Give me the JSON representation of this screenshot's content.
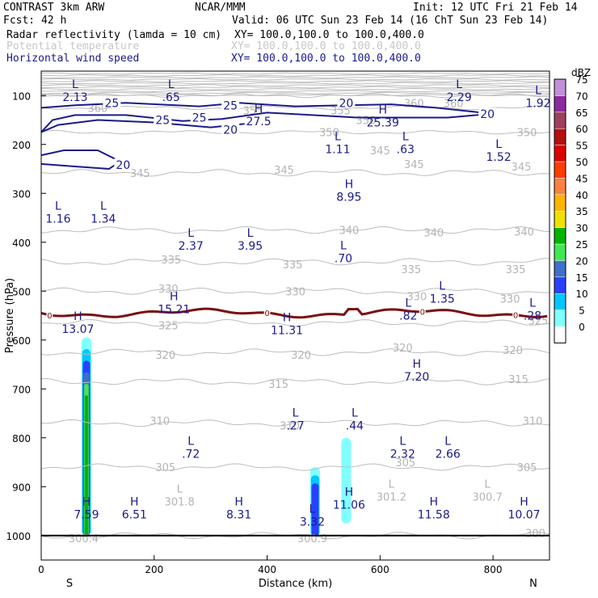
{
  "header": {
    "model": "CONTRAST  3km ARW",
    "center": "NCAR/MMM",
    "init": "Init: 12 UTC Fri 21 Feb 14",
    "fcst": "Fcst:   42 h",
    "valid": "Valid: 06 UTC Sun 23 Feb 14 (16 ChT Sun 23 Feb 14)",
    "fields": [
      {
        "label": "Radar reflectivity (lamda = 10 cm)",
        "xy": "XY= 100.0,100.0 to 100.0,400.0"
      },
      {
        "label": "Potential temperature",
        "xy": "XY= 100.0,100.0 to 100.0,400.0"
      },
      {
        "label": "Horizontal wind speed",
        "xy": "XY= 100.0,100.0 to 100.0,400.0"
      }
    ],
    "colors": {
      "field0": "#000000",
      "field1": "#c8c8c8",
      "field2": "#1a1a8c"
    }
  },
  "chart_data": {
    "type": "cross-section",
    "xlabel": "Distance (km)",
    "ylabel": "Pressure (hPa)",
    "xlim": [
      0,
      900
    ],
    "ylim": [
      1050,
      50
    ],
    "x_ticks": [
      0,
      200,
      400,
      600,
      800
    ],
    "y_ticks": [
      100,
      200,
      300,
      400,
      500,
      600,
      700,
      800,
      900,
      1000
    ],
    "end_labels": {
      "left": "S",
      "right": "N"
    },
    "colorbar": {
      "units": "dBZ",
      "levels": [
        0,
        5,
        10,
        15,
        20,
        25,
        30,
        35,
        40,
        45,
        50,
        55,
        60,
        65,
        70,
        75
      ],
      "colors": [
        "#ffffff",
        "#80ffff",
        "#00c8ff",
        "#2a40ff",
        "#3d70c8",
        "#40e850",
        "#00b400",
        "#f0e000",
        "#ffb400",
        "#ff8040",
        "#ff3c00",
        "#dc0000",
        "#b41010",
        "#a04060",
        "#8c2aa0",
        "#c090d8"
      ]
    },
    "theta_contours": [
      {
        "value": 300,
        "p": 1000
      },
      {
        "value": 305,
        "p": 860
      },
      {
        "value": 310,
        "p": 770
      },
      {
        "value": 315,
        "p": 685
      },
      {
        "value": 320,
        "p": 625
      },
      {
        "value": 325,
        "p": 565
      },
      {
        "value": 330,
        "p": 500
      },
      {
        "value": 335,
        "p": 440
      },
      {
        "value": 340,
        "p": 375
      },
      {
        "value": 345,
        "p": 258
      },
      {
        "value": 350,
        "p": 175
      },
      {
        "value": 355,
        "p": 125
      },
      {
        "value": 360,
        "p": 100
      }
    ],
    "theta_labels": [
      {
        "x": 100,
        "p": 125,
        "text": "360"
      },
      {
        "x": 375,
        "p": 130,
        "text": "355"
      },
      {
        "x": 660,
        "p": 115,
        "text": "360"
      },
      {
        "x": 730,
        "p": 115,
        "text": "360"
      },
      {
        "x": 530,
        "p": 130,
        "text": "355"
      },
      {
        "x": 575,
        "p": 150,
        "text": "350"
      },
      {
        "x": 860,
        "p": 175,
        "text": "350"
      },
      {
        "x": 510,
        "p": 175,
        "text": "350"
      },
      {
        "x": 175,
        "p": 258,
        "text": "345"
      },
      {
        "x": 430,
        "p": 252,
        "text": "345"
      },
      {
        "x": 660,
        "p": 240,
        "text": "345"
      },
      {
        "x": 600,
        "p": 212,
        "text": "345"
      },
      {
        "x": 850,
        "p": 245,
        "text": "345"
      },
      {
        "x": 695,
        "p": 380,
        "text": "340"
      },
      {
        "x": 545,
        "p": 375,
        "text": "340"
      },
      {
        "x": 855,
        "p": 378,
        "text": "340"
      },
      {
        "x": 230,
        "p": 435,
        "text": "335"
      },
      {
        "x": 445,
        "p": 445,
        "text": "335"
      },
      {
        "x": 655,
        "p": 455,
        "text": "335"
      },
      {
        "x": 840,
        "p": 455,
        "text": "335"
      },
      {
        "x": 225,
        "p": 495,
        "text": "330"
      },
      {
        "x": 450,
        "p": 500,
        "text": "330"
      },
      {
        "x": 665,
        "p": 510,
        "text": "330"
      },
      {
        "x": 830,
        "p": 515,
        "text": "330"
      },
      {
        "x": 225,
        "p": 570,
        "text": "325"
      },
      {
        "x": 880,
        "p": 560,
        "text": "325"
      },
      {
        "x": 220,
        "p": 630,
        "text": "320"
      },
      {
        "x": 460,
        "p": 630,
        "text": "320"
      },
      {
        "x": 835,
        "p": 620,
        "text": "320"
      },
      {
        "x": 640,
        "p": 615,
        "text": "320"
      },
      {
        "x": 420,
        "p": 690,
        "text": "315"
      },
      {
        "x": 845,
        "p": 680,
        "text": "315"
      },
      {
        "x": 210,
        "p": 765,
        "text": "310"
      },
      {
        "x": 440,
        "p": 775,
        "text": "310"
      },
      {
        "x": 870,
        "p": 765,
        "text": "310"
      },
      {
        "x": 220,
        "p": 860,
        "text": "305"
      },
      {
        "x": 645,
        "p": 850,
        "text": "305"
      },
      {
        "x": 860,
        "p": 860,
        "text": "305"
      },
      {
        "x": 75,
        "p": 1005,
        "text": "300.4"
      },
      {
        "x": 480,
        "p": 1005,
        "text": "300.9"
      },
      {
        "x": 875,
        "p": 995,
        "text": "300"
      }
    ],
    "theta_extrema": [
      {
        "x": 245,
        "p": 925,
        "letter": "L",
        "value": "301.8"
      },
      {
        "x": 620,
        "p": 915,
        "letter": "L",
        "value": "301.2"
      },
      {
        "x": 790,
        "p": 915,
        "letter": "L",
        "value": "300.7"
      }
    ],
    "wind_contours": [
      {
        "value": 20,
        "label": "20"
      },
      {
        "value": 25,
        "label": "25"
      }
    ],
    "wind_labels": [
      {
        "x": 125,
        "p": 115,
        "text": "25"
      },
      {
        "x": 215,
        "p": 150,
        "text": "25"
      },
      {
        "x": 280,
        "p": 145,
        "text": "25"
      },
      {
        "x": 335,
        "p": 120,
        "text": "25"
      },
      {
        "x": 335,
        "p": 170,
        "text": "20"
      },
      {
        "x": 540,
        "p": 115,
        "text": "20"
      },
      {
        "x": 790,
        "p": 138,
        "text": "20"
      },
      {
        "x": 145,
        "p": 242,
        "text": "20"
      }
    ],
    "wind_extrema": [
      {
        "x": 60,
        "p": 88,
        "letter": "L",
        "value": "2.13"
      },
      {
        "x": 230,
        "p": 88,
        "letter": "L",
        "value": ".65"
      },
      {
        "x": 740,
        "p": 88,
        "letter": "L",
        "value": "2.29"
      },
      {
        "x": 880,
        "p": 100,
        "letter": "L",
        "value": "1.92"
      },
      {
        "x": 385,
        "p": 138,
        "letter": "H",
        "value": "27.5"
      },
      {
        "x": 605,
        "p": 140,
        "letter": "H",
        "value": "25.39"
      },
      {
        "x": 525,
        "p": 195,
        "letter": "L",
        "value": "1.11"
      },
      {
        "x": 645,
        "p": 195,
        "letter": "L",
        "value": ".63"
      },
      {
        "x": 810,
        "p": 210,
        "letter": "L",
        "value": "1.52"
      },
      {
        "x": 545,
        "p": 292,
        "letter": "H",
        "value": "8.95"
      },
      {
        "x": 30,
        "p": 337,
        "letter": "L",
        "value": "1.16"
      },
      {
        "x": 110,
        "p": 337,
        "letter": "L",
        "value": "1.34"
      },
      {
        "x": 265,
        "p": 392,
        "letter": "L",
        "value": "2.37"
      },
      {
        "x": 370,
        "p": 392,
        "letter": "L",
        "value": "3.95"
      },
      {
        "x": 535,
        "p": 418,
        "letter": "L",
        "value": ".70"
      },
      {
        "x": 710,
        "p": 500,
        "letter": "L",
        "value": "1.35"
      },
      {
        "x": 235,
        "p": 522,
        "letter": "H",
        "value": "15.21"
      },
      {
        "x": 650,
        "p": 535,
        "letter": "L",
        "value": ".82"
      },
      {
        "x": 870,
        "p": 535,
        "letter": "L",
        "value": ".28"
      },
      {
        "x": 65,
        "p": 562,
        "letter": "H",
        "value": "13.07"
      },
      {
        "x": 435,
        "p": 565,
        "letter": "H",
        "value": "11.31"
      },
      {
        "x": 665,
        "p": 660,
        "letter": "H",
        "value": "7.20"
      },
      {
        "x": 450,
        "p": 760,
        "letter": "L",
        "value": ".27"
      },
      {
        "x": 555,
        "p": 760,
        "letter": "L",
        "value": ".44"
      },
      {
        "x": 265,
        "p": 818,
        "letter": "L",
        "value": ".72"
      },
      {
        "x": 640,
        "p": 818,
        "letter": "L",
        "value": "2.32"
      },
      {
        "x": 720,
        "p": 818,
        "letter": "L",
        "value": "2.66"
      },
      {
        "x": 545,
        "p": 922,
        "letter": "H",
        "value": "11.06"
      },
      {
        "x": 80,
        "p": 942,
        "letter": "H",
        "value": "7.59"
      },
      {
        "x": 165,
        "p": 942,
        "letter": "H",
        "value": "6.51"
      },
      {
        "x": 350,
        "p": 942,
        "letter": "H",
        "value": "8.31"
      },
      {
        "x": 480,
        "p": 957,
        "letter": "L",
        "value": "3.32"
      },
      {
        "x": 695,
        "p": 942,
        "letter": "H",
        "value": "11.58"
      },
      {
        "x": 855,
        "p": 942,
        "letter": "H",
        "value": "10.07"
      }
    ],
    "zero_line": {
      "value": "0",
      "p": 545
    },
    "reflectivity_cells": [
      {
        "x": 80,
        "p_top": 595,
        "p_bot": 1000,
        "max_dbz": 30
      },
      {
        "x": 485,
        "p_top": 860,
        "p_bot": 1002,
        "max_dbz": 15
      },
      {
        "x": 540,
        "p_top": 800,
        "p_bot": 975,
        "max_dbz": 5
      }
    ],
    "surface_p": 1000
  }
}
